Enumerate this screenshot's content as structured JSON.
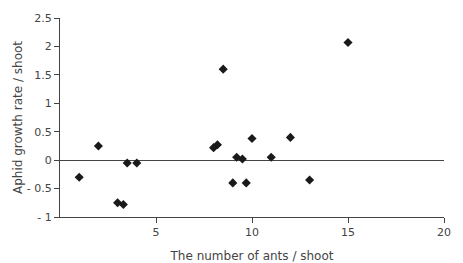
{
  "chart_data": {
    "type": "scatter",
    "x": [
      1,
      2,
      3,
      3.3,
      3.5,
      4,
      8,
      8.2,
      8.5,
      9,
      9.2,
      9.5,
      9.7,
      10,
      11,
      12,
      13,
      15
    ],
    "values": [
      -0.3,
      0.25,
      -0.75,
      -0.78,
      -0.05,
      -0.05,
      0.22,
      0.27,
      1.6,
      -0.4,
      0.05,
      0.02,
      -0.4,
      0.38,
      0.05,
      0.4,
      -0.35,
      2.07
    ],
    "xlabel": "The number of ants / shoot",
    "ylabel": "Aphid growth rate / shoot",
    "xlim": [
      0,
      20
    ],
    "ylim": [
      -1.0,
      2.5
    ],
    "xticks": [
      5,
      10,
      15,
      20
    ],
    "yticks": [
      {
        "value": -1.0,
        "label": "- 1"
      },
      {
        "value": -0.5,
        "label": "- 0.5"
      },
      0,
      0.5,
      1,
      1.5,
      2,
      2.5
    ],
    "marker": "diamond",
    "color": "#1a1a1a",
    "grid": false
  }
}
